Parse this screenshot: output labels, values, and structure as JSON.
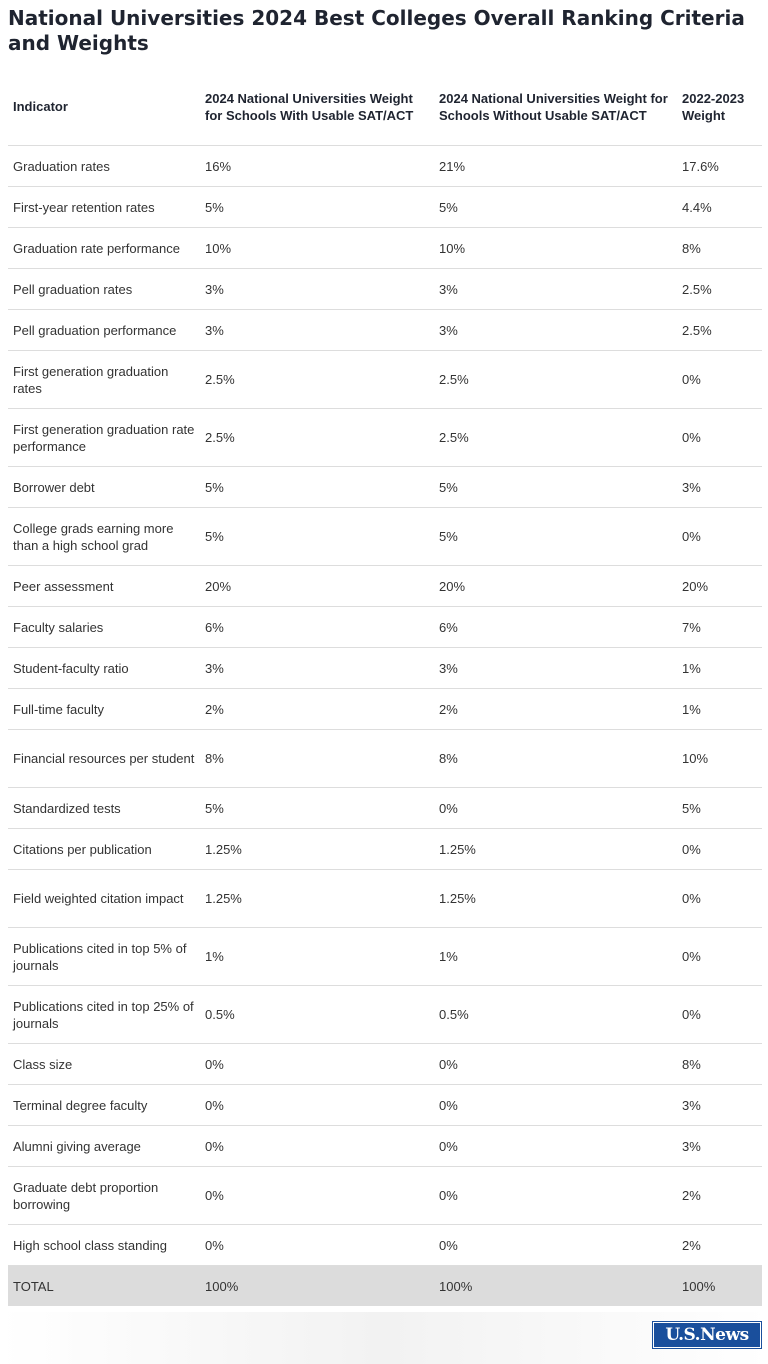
{
  "title": "National Universities 2024 Best Colleges Overall Ranking Criteria and Weights",
  "table": {
    "headers": [
      "Indicator",
      "2024 National Universities Weight for Schools With Usable SAT/ACT",
      "2024 National Universities Weight for Schools Without Usable SAT/ACT",
      "2022-2023 Weight"
    ],
    "rows": [
      [
        "Graduation rates",
        "16%",
        "21%",
        "17.6%"
      ],
      [
        "First-year retention rates",
        "5%",
        "5%",
        "4.4%"
      ],
      [
        "Graduation rate performance",
        "10%",
        "10%",
        "8%"
      ],
      [
        "Pell graduation rates",
        "3%",
        "3%",
        "2.5%"
      ],
      [
        "Pell graduation performance",
        "3%",
        "3%",
        "2.5%"
      ],
      [
        "First generation graduation rates",
        "2.5%",
        "2.5%",
        "0%"
      ],
      [
        "First generation graduation rate performance",
        "2.5%",
        "2.5%",
        "0%"
      ],
      [
        "Borrower debt",
        "5%",
        "5%",
        "3%"
      ],
      [
        "College grads earning more than a high school grad",
        "5%",
        "5%",
        "0%"
      ],
      [
        "Peer assessment",
        "20%",
        "20%",
        "20%"
      ],
      [
        "Faculty salaries",
        "6%",
        "6%",
        "7%"
      ],
      [
        "Student-faculty ratio",
        "3%",
        "3%",
        "1%"
      ],
      [
        "Full-time faculty",
        "2%",
        "2%",
        "1%"
      ],
      [
        "Financial resources per student",
        "8%",
        "8%",
        "10%"
      ],
      [
        "Standardized tests",
        "5%",
        "0%",
        "5%"
      ],
      [
        "Citations per publication",
        "1.25%",
        "1.25%",
        "0%"
      ],
      [
        "Field weighted citation impact",
        "1.25%",
        "1.25%",
        "0%"
      ],
      [
        "Publications cited in top 5% of journals",
        "1%",
        "1%",
        "0%"
      ],
      [
        "Publications cited in top 25% of journals",
        "0.5%",
        "0.5%",
        "0%"
      ],
      [
        "Class size",
        "0%",
        "0%",
        "8%"
      ],
      [
        "Terminal degree faculty",
        "0%",
        "0%",
        "3%"
      ],
      [
        "Alumni giving average",
        "0%",
        "0%",
        "3%"
      ],
      [
        "Graduate debt proportion borrowing",
        "0%",
        "0%",
        "2%"
      ],
      [
        "High school class standing",
        "0%",
        "0%",
        "2%"
      ]
    ],
    "total": [
      "TOTAL",
      "100%",
      "100%",
      "100%"
    ]
  },
  "logo": {
    "text": "U.S.News",
    "brand_color": "#1a4f9c"
  },
  "colors": {
    "total_row_background": "#dcdcdc",
    "row_divider": "#dddddd"
  }
}
